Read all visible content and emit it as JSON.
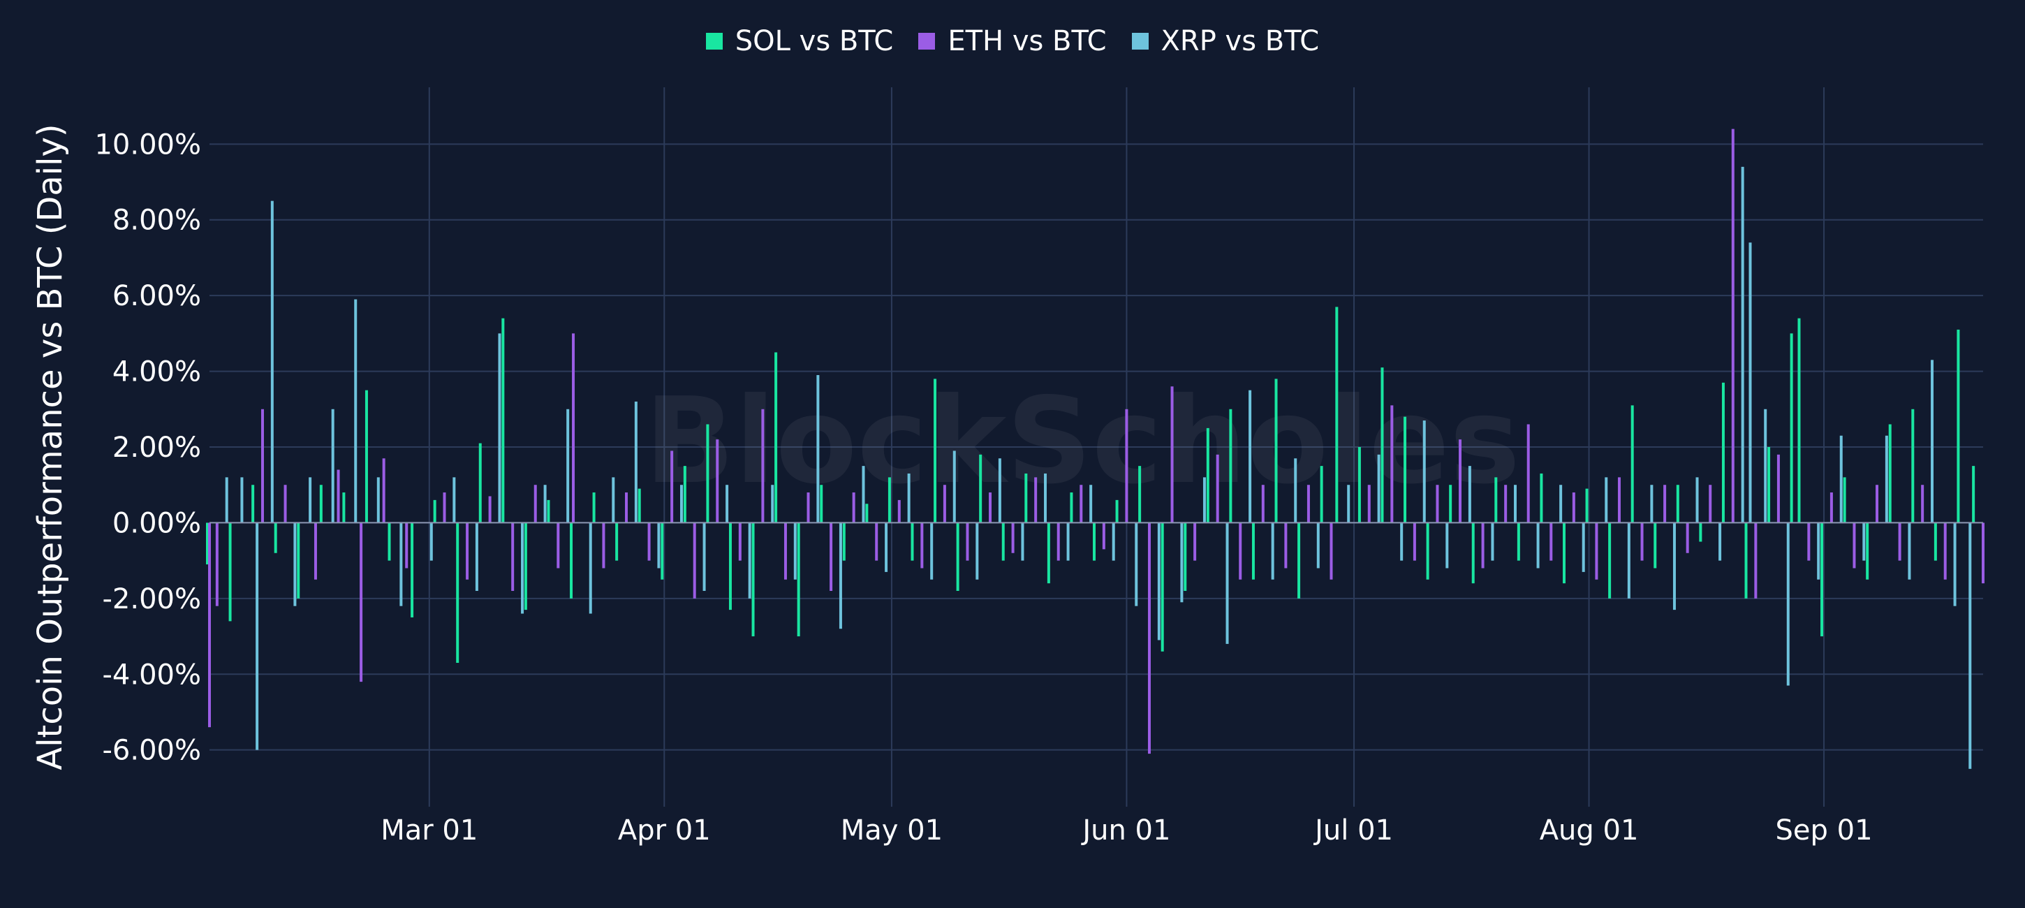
{
  "chart_data": {
    "type": "bar",
    "title": "",
    "watermark": "BlockScholes",
    "ylabel": "Altcoin Outperformance vs BTC (Daily)",
    "xlabel": "",
    "x_start": "2024-02-01",
    "x_end": "2024-09-22",
    "ylim": [
      -7.5,
      11.5
    ],
    "y_ticks": [
      10,
      8,
      6,
      4,
      2,
      0,
      -2,
      -4,
      -6
    ],
    "y_tick_labels": [
      "10.00%",
      "8.00%",
      "6.00%",
      "4.00%",
      "2.00%",
      "0.00%",
      "-2.00%",
      "-4.00%",
      "-6.00%"
    ],
    "x_ticks": [
      "2024-03-01",
      "2024-04-01",
      "2024-05-01",
      "2024-06-01",
      "2024-07-01",
      "2024-08-01",
      "2024-09-01"
    ],
    "x_tick_labels": [
      "Mar 01",
      "Apr 01",
      "May 01",
      "Jun 01",
      "Jul 01",
      "Aug 01",
      "Sep 01"
    ],
    "grid": true,
    "legend_position": "top-center",
    "series": [
      {
        "name": "SOL vs BTC",
        "color": "#19e6a1",
        "points": [
          [
            "2024-02-01",
            -1.1
          ],
          [
            "2024-02-04",
            -2.6
          ],
          [
            "2024-02-07",
            1.0
          ],
          [
            "2024-02-10",
            -0.8
          ],
          [
            "2024-02-13",
            -2.0
          ],
          [
            "2024-02-16",
            1.0
          ],
          [
            "2024-02-19",
            0.8
          ],
          [
            "2024-02-22",
            3.5
          ],
          [
            "2024-02-25",
            -1.0
          ],
          [
            "2024-02-28",
            -2.5
          ],
          [
            "2024-03-02",
            0.6
          ],
          [
            "2024-03-05",
            -3.7
          ],
          [
            "2024-03-08",
            2.1
          ],
          [
            "2024-03-11",
            5.4
          ],
          [
            "2024-03-14",
            -2.3
          ],
          [
            "2024-03-17",
            0.6
          ],
          [
            "2024-03-20",
            -2.0
          ],
          [
            "2024-03-23",
            0.8
          ],
          [
            "2024-03-26",
            -1.0
          ],
          [
            "2024-03-29",
            0.9
          ],
          [
            "2024-04-01",
            -1.5
          ],
          [
            "2024-04-04",
            1.5
          ],
          [
            "2024-04-07",
            2.6
          ],
          [
            "2024-04-10",
            -2.3
          ],
          [
            "2024-04-13",
            -3.0
          ],
          [
            "2024-04-16",
            4.5
          ],
          [
            "2024-04-19",
            -3.0
          ],
          [
            "2024-04-22",
            1.0
          ],
          [
            "2024-04-25",
            -1.0
          ],
          [
            "2024-04-28",
            0.5
          ],
          [
            "2024-05-01",
            1.2
          ],
          [
            "2024-05-04",
            -1.0
          ],
          [
            "2024-05-07",
            3.8
          ],
          [
            "2024-05-10",
            -1.8
          ],
          [
            "2024-05-13",
            1.8
          ],
          [
            "2024-05-16",
            -1.0
          ],
          [
            "2024-05-19",
            1.3
          ],
          [
            "2024-05-22",
            -1.6
          ],
          [
            "2024-05-25",
            0.8
          ],
          [
            "2024-05-28",
            -1.0
          ],
          [
            "2024-05-31",
            0.6
          ],
          [
            "2024-06-03",
            1.5
          ],
          [
            "2024-06-06",
            -3.4
          ],
          [
            "2024-06-09",
            -1.8
          ],
          [
            "2024-06-12",
            2.5
          ],
          [
            "2024-06-15",
            3.0
          ],
          [
            "2024-06-18",
            -1.5
          ],
          [
            "2024-06-21",
            3.8
          ],
          [
            "2024-06-24",
            -2.0
          ],
          [
            "2024-06-27",
            1.5
          ],
          [
            "2024-06-29",
            5.7
          ],
          [
            "2024-07-02",
            2.0
          ],
          [
            "2024-07-05",
            4.1
          ],
          [
            "2024-07-08",
            2.8
          ],
          [
            "2024-07-11",
            -1.5
          ],
          [
            "2024-07-14",
            1.0
          ],
          [
            "2024-07-17",
            -1.6
          ],
          [
            "2024-07-20",
            1.2
          ],
          [
            "2024-07-23",
            -1.0
          ],
          [
            "2024-07-26",
            1.3
          ],
          [
            "2024-07-29",
            -1.6
          ],
          [
            "2024-08-01",
            0.9
          ],
          [
            "2024-08-04",
            -2.0
          ],
          [
            "2024-08-07",
            3.1
          ],
          [
            "2024-08-10",
            -1.2
          ],
          [
            "2024-08-13",
            1.0
          ],
          [
            "2024-08-16",
            -0.5
          ],
          [
            "2024-08-19",
            3.7
          ],
          [
            "2024-08-22",
            -2.0
          ],
          [
            "2024-08-25",
            2.0
          ],
          [
            "2024-08-28",
            5.0
          ],
          [
            "2024-08-29",
            5.4
          ],
          [
            "2024-09-01",
            -3.0
          ],
          [
            "2024-09-04",
            1.2
          ],
          [
            "2024-09-07",
            -1.5
          ],
          [
            "2024-09-10",
            2.6
          ],
          [
            "2024-09-13",
            3.0
          ],
          [
            "2024-09-16",
            -1.0
          ],
          [
            "2024-09-19",
            5.1
          ],
          [
            "2024-09-21",
            1.5
          ]
        ]
      },
      {
        "name": "ETH vs BTC",
        "color": "#9b5de5",
        "points": [
          [
            "2024-02-01",
            -5.4
          ],
          [
            "2024-02-02",
            -2.2
          ],
          [
            "2024-02-08",
            3.0
          ],
          [
            "2024-02-11",
            1.0
          ],
          [
            "2024-02-15",
            -1.5
          ],
          [
            "2024-02-18",
            1.4
          ],
          [
            "2024-02-21",
            -4.2
          ],
          [
            "2024-02-24",
            1.7
          ],
          [
            "2024-02-27",
            -1.2
          ],
          [
            "2024-03-03",
            0.8
          ],
          [
            "2024-03-06",
            -1.5
          ],
          [
            "2024-03-09",
            0.7
          ],
          [
            "2024-03-12",
            -1.8
          ],
          [
            "2024-03-15",
            1.0
          ],
          [
            "2024-03-18",
            -1.2
          ],
          [
            "2024-03-20",
            5.0
          ],
          [
            "2024-03-24",
            -1.2
          ],
          [
            "2024-03-27",
            0.8
          ],
          [
            "2024-03-30",
            -1.0
          ],
          [
            "2024-04-02",
            1.9
          ],
          [
            "2024-04-05",
            -2.0
          ],
          [
            "2024-04-08",
            2.2
          ],
          [
            "2024-04-11",
            -1.0
          ],
          [
            "2024-04-14",
            3.0
          ],
          [
            "2024-04-17",
            -1.5
          ],
          [
            "2024-04-20",
            0.8
          ],
          [
            "2024-04-23",
            -1.8
          ],
          [
            "2024-04-26",
            0.8
          ],
          [
            "2024-04-29",
            -1.0
          ],
          [
            "2024-05-02",
            0.6
          ],
          [
            "2024-05-05",
            -1.2
          ],
          [
            "2024-05-08",
            1.0
          ],
          [
            "2024-05-11",
            -1.0
          ],
          [
            "2024-05-14",
            0.8
          ],
          [
            "2024-05-17",
            -0.8
          ],
          [
            "2024-05-20",
            1.2
          ],
          [
            "2024-05-23",
            -1.0
          ],
          [
            "2024-05-26",
            1.0
          ],
          [
            "2024-05-29",
            -0.7
          ],
          [
            "2024-06-01",
            3.0
          ],
          [
            "2024-06-04",
            -6.1
          ],
          [
            "2024-06-07",
            3.6
          ],
          [
            "2024-06-10",
            -1.0
          ],
          [
            "2024-06-13",
            1.8
          ],
          [
            "2024-06-16",
            -1.5
          ],
          [
            "2024-06-19",
            1.0
          ],
          [
            "2024-06-22",
            -1.2
          ],
          [
            "2024-06-25",
            1.0
          ],
          [
            "2024-06-28",
            -1.5
          ],
          [
            "2024-07-03",
            1.0
          ],
          [
            "2024-07-06",
            3.1
          ],
          [
            "2024-07-09",
            -1.0
          ],
          [
            "2024-07-12",
            1.0
          ],
          [
            "2024-07-15",
            2.2
          ],
          [
            "2024-07-18",
            -1.2
          ],
          [
            "2024-07-21",
            1.0
          ],
          [
            "2024-07-24",
            2.6
          ],
          [
            "2024-07-27",
            -1.0
          ],
          [
            "2024-07-30",
            0.8
          ],
          [
            "2024-08-02",
            -1.5
          ],
          [
            "2024-08-05",
            1.2
          ],
          [
            "2024-08-08",
            -1.0
          ],
          [
            "2024-08-11",
            1.0
          ],
          [
            "2024-08-14",
            -0.8
          ],
          [
            "2024-08-17",
            1.0
          ],
          [
            "2024-08-20",
            10.4
          ],
          [
            "2024-08-23",
            -2.0
          ],
          [
            "2024-08-26",
            1.8
          ],
          [
            "2024-08-30",
            -1.0
          ],
          [
            "2024-09-02",
            0.8
          ],
          [
            "2024-09-05",
            -1.2
          ],
          [
            "2024-09-08",
            1.0
          ],
          [
            "2024-09-11",
            -1.0
          ],
          [
            "2024-09-14",
            1.0
          ],
          [
            "2024-09-17",
            -1.5
          ],
          [
            "2024-09-22",
            -1.6
          ]
        ]
      },
      {
        "name": "XRP vs BTC",
        "color": "#6ec3dd",
        "points": [
          [
            "2024-02-03",
            1.2
          ],
          [
            "2024-02-05",
            1.2
          ],
          [
            "2024-02-07",
            -6.0
          ],
          [
            "2024-02-09",
            8.5
          ],
          [
            "2024-02-12",
            -2.2
          ],
          [
            "2024-02-14",
            1.2
          ],
          [
            "2024-02-17",
            3.0
          ],
          [
            "2024-02-20",
            5.9
          ],
          [
            "2024-02-23",
            1.2
          ],
          [
            "2024-02-26",
            -2.2
          ],
          [
            "2024-03-01",
            -1.0
          ],
          [
            "2024-03-04",
            1.2
          ],
          [
            "2024-03-07",
            -1.8
          ],
          [
            "2024-03-10",
            5.0
          ],
          [
            "2024-03-13",
            -2.4
          ],
          [
            "2024-03-16",
            1.0
          ],
          [
            "2024-03-19",
            3.0
          ],
          [
            "2024-03-22",
            -2.4
          ],
          [
            "2024-03-25",
            1.2
          ],
          [
            "2024-03-28",
            3.2
          ],
          [
            "2024-03-31",
            -1.2
          ],
          [
            "2024-04-03",
            1.0
          ],
          [
            "2024-04-06",
            -1.8
          ],
          [
            "2024-04-09",
            1.0
          ],
          [
            "2024-04-12",
            -2.0
          ],
          [
            "2024-04-15",
            1.0
          ],
          [
            "2024-04-18",
            -1.5
          ],
          [
            "2024-04-21",
            3.9
          ],
          [
            "2024-04-24",
            -2.8
          ],
          [
            "2024-04-27",
            1.5
          ],
          [
            "2024-04-30",
            -1.3
          ],
          [
            "2024-05-03",
            1.3
          ],
          [
            "2024-05-06",
            -1.5
          ],
          [
            "2024-05-09",
            1.9
          ],
          [
            "2024-05-12",
            -1.5
          ],
          [
            "2024-05-15",
            1.7
          ],
          [
            "2024-05-18",
            -1.0
          ],
          [
            "2024-05-21",
            1.3
          ],
          [
            "2024-05-24",
            -1.0
          ],
          [
            "2024-05-27",
            1.0
          ],
          [
            "2024-05-30",
            -1.0
          ],
          [
            "2024-06-02",
            -2.2
          ],
          [
            "2024-06-05",
            -3.1
          ],
          [
            "2024-06-08",
            -2.1
          ],
          [
            "2024-06-11",
            1.2
          ],
          [
            "2024-06-14",
            -3.2
          ],
          [
            "2024-06-17",
            3.5
          ],
          [
            "2024-06-20",
            -1.5
          ],
          [
            "2024-06-23",
            1.7
          ],
          [
            "2024-06-26",
            -1.2
          ],
          [
            "2024-06-30",
            1.0
          ],
          [
            "2024-07-04",
            1.8
          ],
          [
            "2024-07-07",
            -1.0
          ],
          [
            "2024-07-10",
            2.7
          ],
          [
            "2024-07-13",
            -1.2
          ],
          [
            "2024-07-16",
            1.5
          ],
          [
            "2024-07-19",
            -1.0
          ],
          [
            "2024-07-22",
            1.0
          ],
          [
            "2024-07-25",
            -1.2
          ],
          [
            "2024-07-28",
            1.0
          ],
          [
            "2024-07-31",
            -1.3
          ],
          [
            "2024-08-03",
            1.2
          ],
          [
            "2024-08-06",
            -2.0
          ],
          [
            "2024-08-09",
            1.0
          ],
          [
            "2024-08-12",
            -2.3
          ],
          [
            "2024-08-15",
            1.2
          ],
          [
            "2024-08-18",
            -1.0
          ],
          [
            "2024-08-21",
            9.4
          ],
          [
            "2024-08-22",
            7.4
          ],
          [
            "2024-08-24",
            3.0
          ],
          [
            "2024-08-27",
            -4.3
          ],
          [
            "2024-08-31",
            -1.5
          ],
          [
            "2024-09-03",
            2.3
          ],
          [
            "2024-09-06",
            -1.0
          ],
          [
            "2024-09-09",
            2.3
          ],
          [
            "2024-09-12",
            -1.5
          ],
          [
            "2024-09-15",
            4.3
          ],
          [
            "2024-09-18",
            -2.2
          ],
          [
            "2024-09-20",
            -6.5
          ]
        ]
      }
    ]
  }
}
